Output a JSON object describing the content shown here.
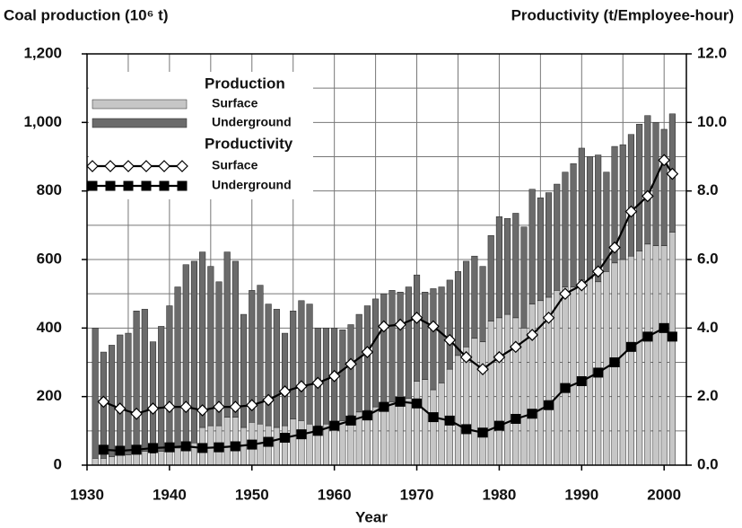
{
  "chart_data": {
    "type": "bar",
    "title": "Coal production (10⁶ t)",
    "y2_title": "Productivity (t/Employee-hour)",
    "xlabel": "Year",
    "legend_groups": [
      "Production",
      "Productivity"
    ],
    "x": [
      1931,
      1932,
      1933,
      1934,
      1935,
      1936,
      1937,
      1938,
      1939,
      1940,
      1941,
      1942,
      1943,
      1944,
      1945,
      1946,
      1947,
      1948,
      1949,
      1950,
      1951,
      1952,
      1953,
      1954,
      1955,
      1956,
      1957,
      1958,
      1959,
      1960,
      1961,
      1962,
      1963,
      1964,
      1965,
      1966,
      1967,
      1968,
      1969,
      1970,
      1971,
      1972,
      1973,
      1974,
      1975,
      1976,
      1977,
      1978,
      1979,
      1980,
      1981,
      1982,
      1983,
      1984,
      1985,
      1986,
      1987,
      1988,
      1989,
      1990,
      1991,
      1992,
      1993,
      1994,
      1995,
      1996,
      1997,
      1998,
      1999,
      2000,
      2001
    ],
    "series": [
      {
        "name": "Surface",
        "color": "#c6c6c6",
        "values": [
          20,
          20,
          25,
          30,
          30,
          35,
          40,
          35,
          40,
          45,
          50,
          60,
          65,
          110,
          115,
          115,
          140,
          140,
          110,
          125,
          120,
          115,
          110,
          115,
          135,
          130,
          120,
          115,
          120,
          125,
          130,
          145,
          155,
          160,
          170,
          180,
          185,
          190,
          195,
          245,
          250,
          220,
          240,
          280,
          320,
          345,
          370,
          360,
          420,
          430,
          440,
          430,
          400,
          470,
          480,
          490,
          510,
          520,
          520,
          540,
          545,
          535,
          565,
          590,
          600,
          610,
          625,
          645,
          640,
          640,
          680
        ]
      },
      {
        "name": "Underground",
        "color": "#6b6b6b",
        "values": [
          380,
          310,
          325,
          350,
          355,
          415,
          415,
          325,
          365,
          420,
          470,
          525,
          530,
          512,
          465,
          420,
          482,
          455,
          330,
          385,
          405,
          355,
          345,
          270,
          315,
          350,
          350,
          285,
          280,
          275,
          265,
          265,
          285,
          305,
          315,
          320,
          325,
          315,
          325,
          310,
          255,
          295,
          280,
          260,
          245,
          250,
          240,
          220,
          250,
          295,
          280,
          305,
          295,
          335,
          300,
          305,
          310,
          335,
          360,
          385,
          355,
          370,
          290,
          340,
          335,
          355,
          370,
          375,
          360,
          340,
          345
        ]
      }
    ],
    "productivity": {
      "x": [
        1932,
        1934,
        1936,
        1938,
        1940,
        1942,
        1944,
        1946,
        1948,
        1950,
        1952,
        1954,
        1956,
        1958,
        1960,
        1962,
        1964,
        1966,
        1968,
        1970,
        1972,
        1974,
        1976,
        1978,
        1980,
        1982,
        1984,
        1986,
        1988,
        1990,
        1992,
        1994,
        1996,
        1998,
        2000,
        2001
      ],
      "series": [
        {
          "name": "Surface",
          "color": "#ffffff",
          "axis": "y2",
          "marker": "diamond",
          "values": [
            1.85,
            1.65,
            1.5,
            1.65,
            1.7,
            1.7,
            1.6,
            1.7,
            1.7,
            1.75,
            1.9,
            2.15,
            2.3,
            2.4,
            2.6,
            2.95,
            3.3,
            4.05,
            4.1,
            4.3,
            4.05,
            3.65,
            3.15,
            2.8,
            3.15,
            3.45,
            3.8,
            4.3,
            5.0,
            5.25,
            5.65,
            6.35,
            7.4,
            7.85,
            8.9,
            8.5
          ]
        },
        {
          "name": "Underground",
          "color": "#000000",
          "axis": "y2",
          "marker": "square",
          "values": [
            0.45,
            0.42,
            0.45,
            0.5,
            0.52,
            0.55,
            0.5,
            0.52,
            0.55,
            0.6,
            0.68,
            0.8,
            0.9,
            1.0,
            1.15,
            1.3,
            1.45,
            1.7,
            1.85,
            1.8,
            1.4,
            1.3,
            1.05,
            0.95,
            1.15,
            1.35,
            1.5,
            1.75,
            2.25,
            2.45,
            2.7,
            3.0,
            3.45,
            3.75,
            4.0,
            3.75
          ]
        }
      ]
    },
    "xlim": [
      1930,
      2002.7
    ],
    "xticks": [
      1930,
      1940,
      1950,
      1960,
      1970,
      1980,
      1990,
      2000
    ],
    "xgrid": [
      1935,
      1940,
      1945,
      1950,
      1955,
      1960,
      1965,
      1970,
      1975,
      1980,
      1985,
      1990,
      1995,
      2000
    ],
    "ylim": [
      0,
      1200
    ],
    "yticks": [
      0,
      200,
      400,
      600,
      800,
      {
        "value": 1000,
        "label": "1,000"
      },
      {
        "value": 1200,
        "label": "1,200"
      }
    ],
    "ygrid": [
      100,
      200,
      300,
      400,
      500,
      600,
      700,
      800,
      900,
      1000,
      1100
    ],
    "y2lim": [
      0,
      12
    ],
    "y2ticks": [
      {
        "value": 0,
        "label": "0.0"
      },
      {
        "value": 2,
        "label": "2.0"
      },
      {
        "value": 4,
        "label": "4.0"
      },
      {
        "value": 6,
        "label": "6.0"
      },
      {
        "value": 8,
        "label": "8.0"
      },
      {
        "value": 10,
        "label": "10.0"
      },
      {
        "value": 12,
        "label": "12.0"
      }
    ],
    "grid": true,
    "legend": "upper left"
  }
}
